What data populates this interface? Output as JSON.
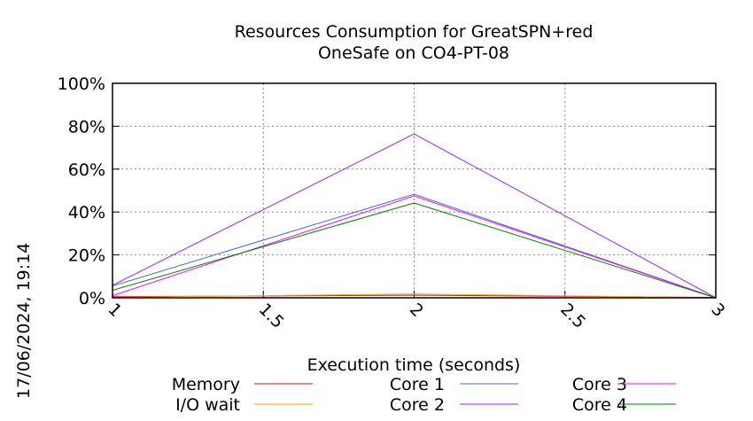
{
  "chart_data": {
    "type": "line",
    "title": "Resources Consumption for GreatSPN+red",
    "subtitle": "OneSafe on CO4-PT-08",
    "xlabel": "Execution time (seconds)",
    "ylabel": "",
    "side_label": "17/06/2024, 19:14",
    "x": [
      1,
      2,
      3
    ],
    "xlim": [
      1,
      3
    ],
    "ylim": [
      0,
      100
    ],
    "xticks": [
      1,
      1.5,
      2,
      2.5,
      3
    ],
    "xtick_labels": [
      "1",
      "1.5",
      "2",
      "2.5",
      "3"
    ],
    "yticks": [
      0,
      20,
      40,
      60,
      80,
      100
    ],
    "ytick_labels": [
      "0%",
      "20%",
      "40%",
      "60%",
      "80%",
      "100%"
    ],
    "grid": true,
    "legend_position": "bottom",
    "series": [
      {
        "name": "Memory",
        "color": "#ff0000",
        "values": [
          0.5,
          1.2,
          0.2
        ]
      },
      {
        "name": "I/O wait",
        "color": "#ffa500",
        "values": [
          0.2,
          1.8,
          0
        ]
      },
      {
        "name": "Core 1",
        "color": "#4169e1",
        "values": [
          5.5,
          48.3,
          0
        ]
      },
      {
        "name": "Core 2",
        "color": "#a020f0",
        "values": [
          5.8,
          76.4,
          0
        ]
      },
      {
        "name": "Core 3",
        "color": "#ff00ff",
        "values": [
          1,
          47.5,
          0
        ]
      },
      {
        "name": "Core 4",
        "color": "#008000",
        "values": [
          3.5,
          44.2,
          0
        ]
      }
    ]
  }
}
